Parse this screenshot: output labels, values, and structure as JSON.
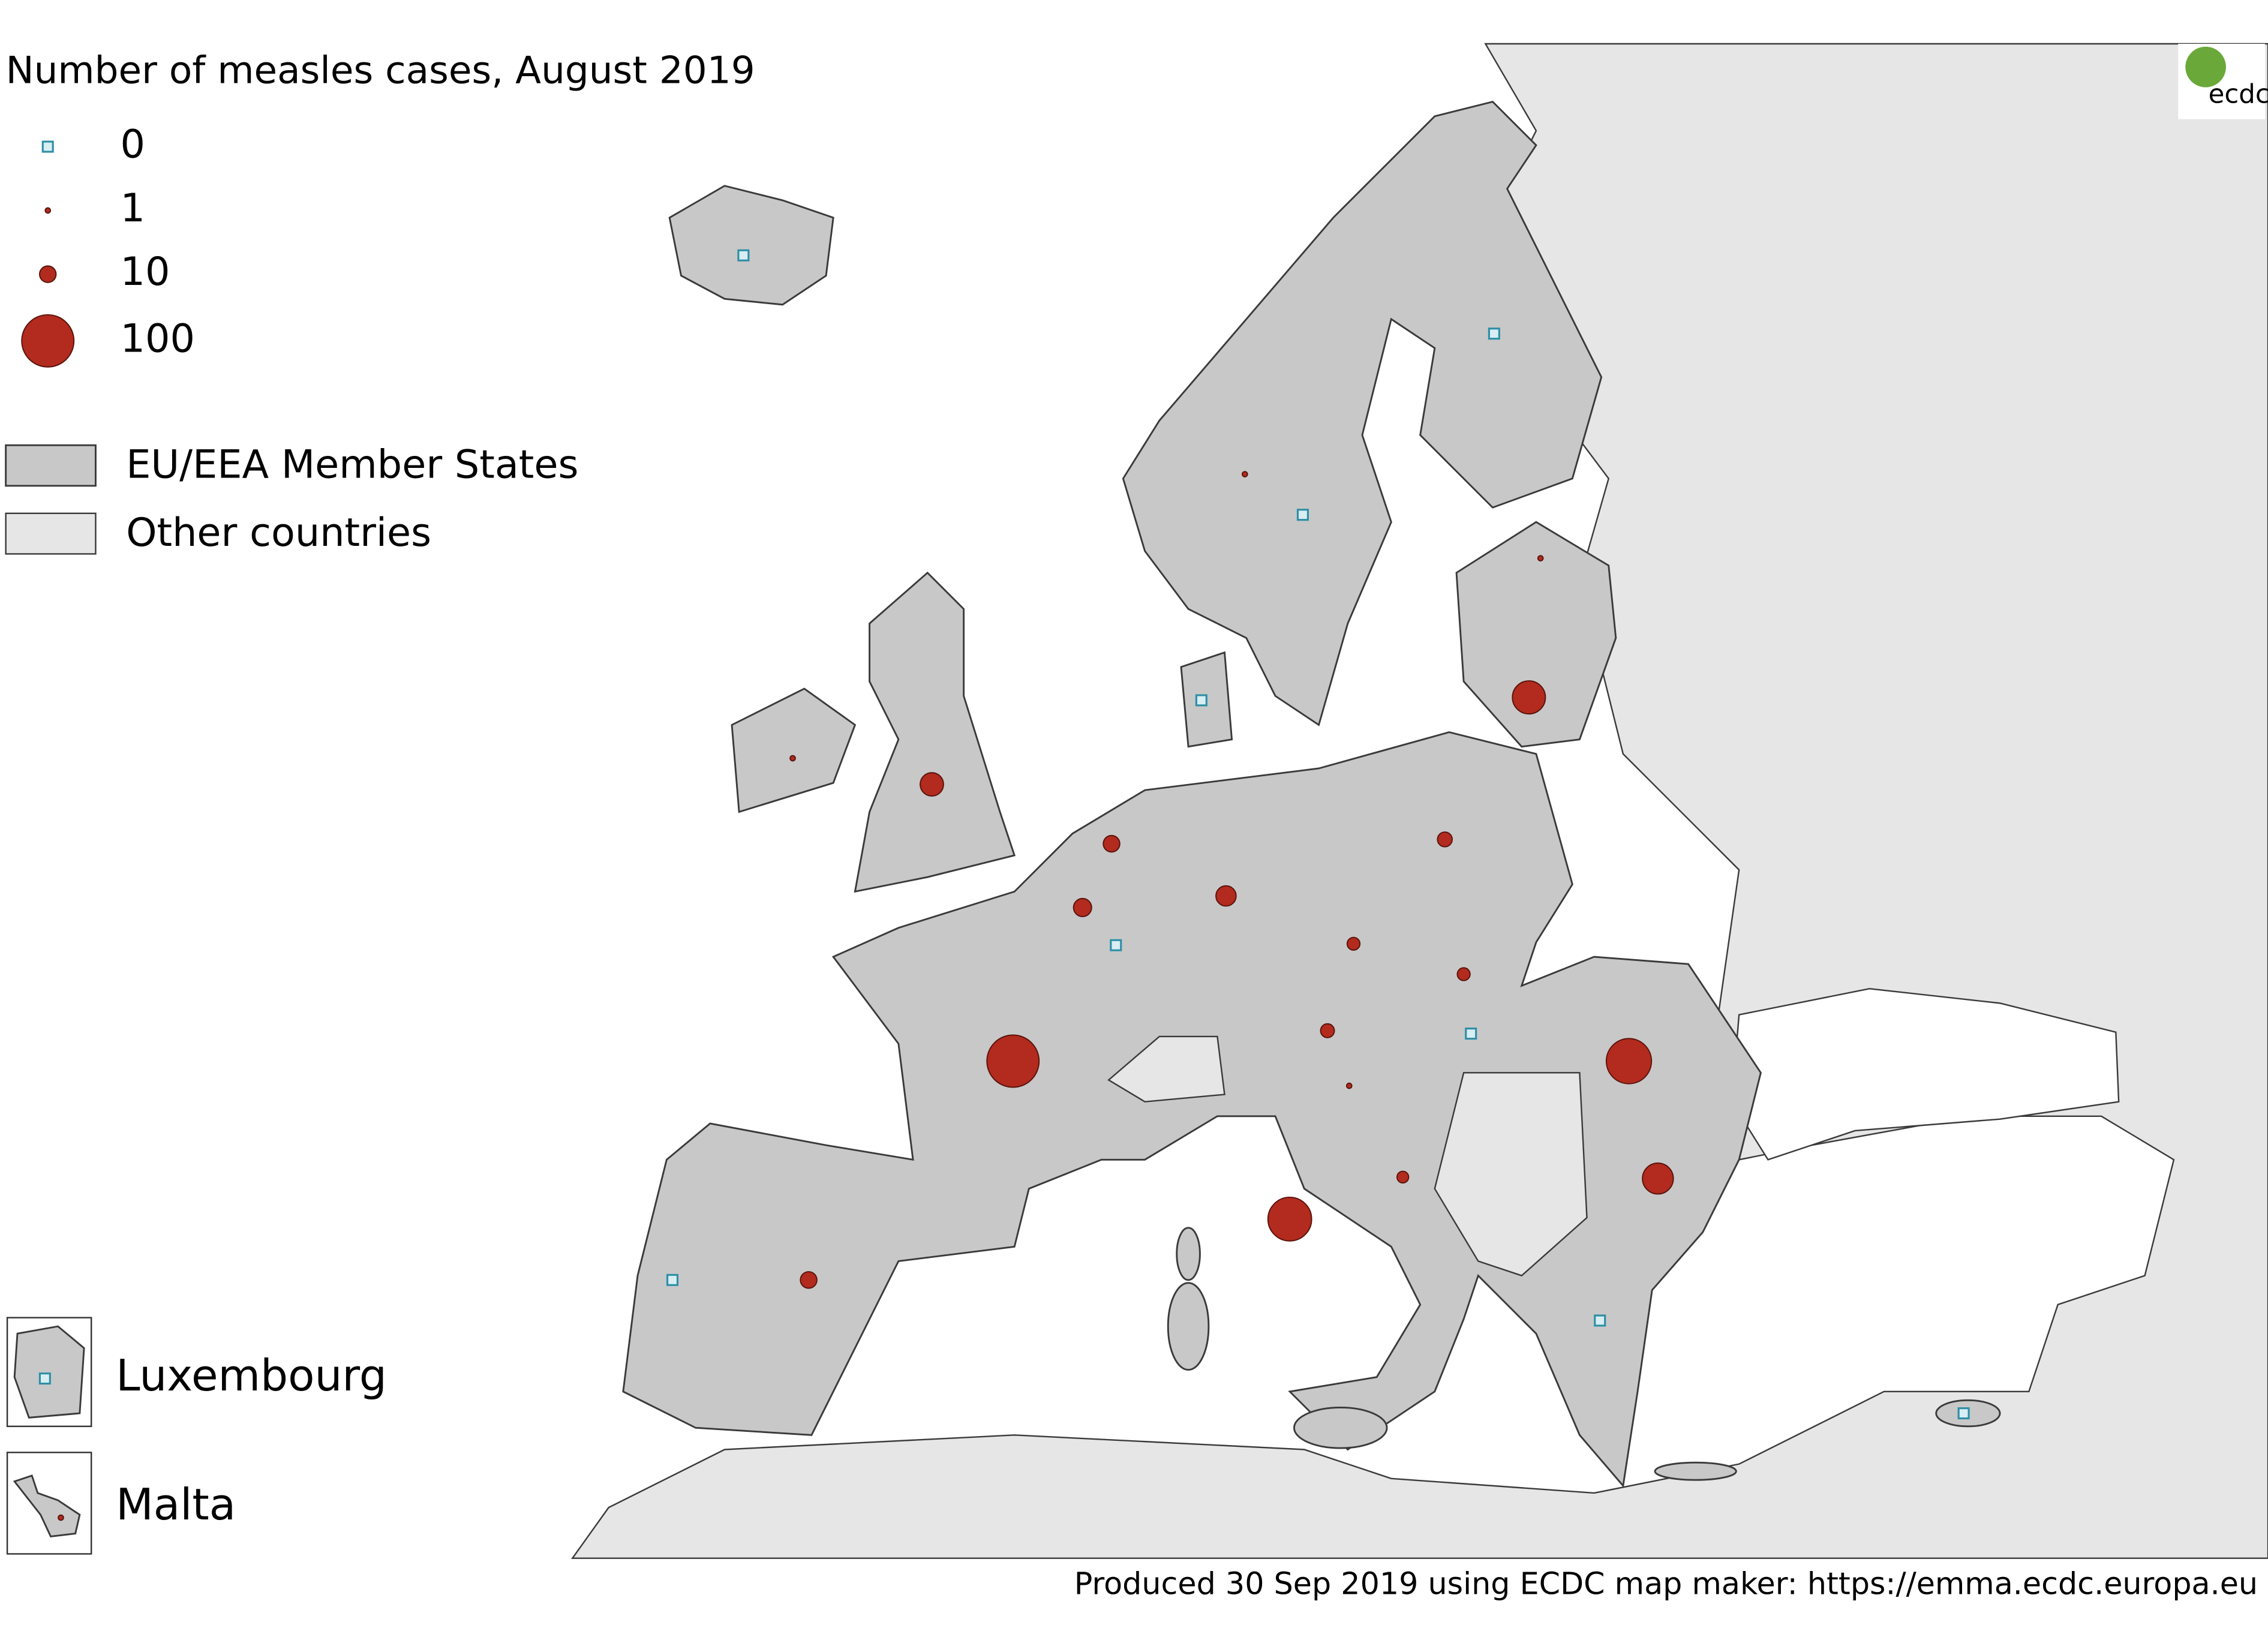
{
  "title": "Number of measles cases, August 2019",
  "size_legend": [
    0,
    1,
    10,
    100
  ],
  "fill_legend": [
    "EU/EEA Member States",
    "Other countries"
  ],
  "insets": [
    "Luxembourg",
    "Malta"
  ],
  "cases": [
    0,
    1,
    0,
    0,
    1,
    40,
    0,
    1,
    20,
    10,
    12,
    0,
    15,
    8,
    6,
    6,
    7,
    0,
    1,
    5,
    100,
    70,
    75,
    35,
    0,
    10,
    0,
    0,
    0,
    1
  ],
  "logo": "ecdc",
  "footer": "Produced 30 Sep 2019 using ECDC map maker: https://emma.ecdc.europa.eu"
}
